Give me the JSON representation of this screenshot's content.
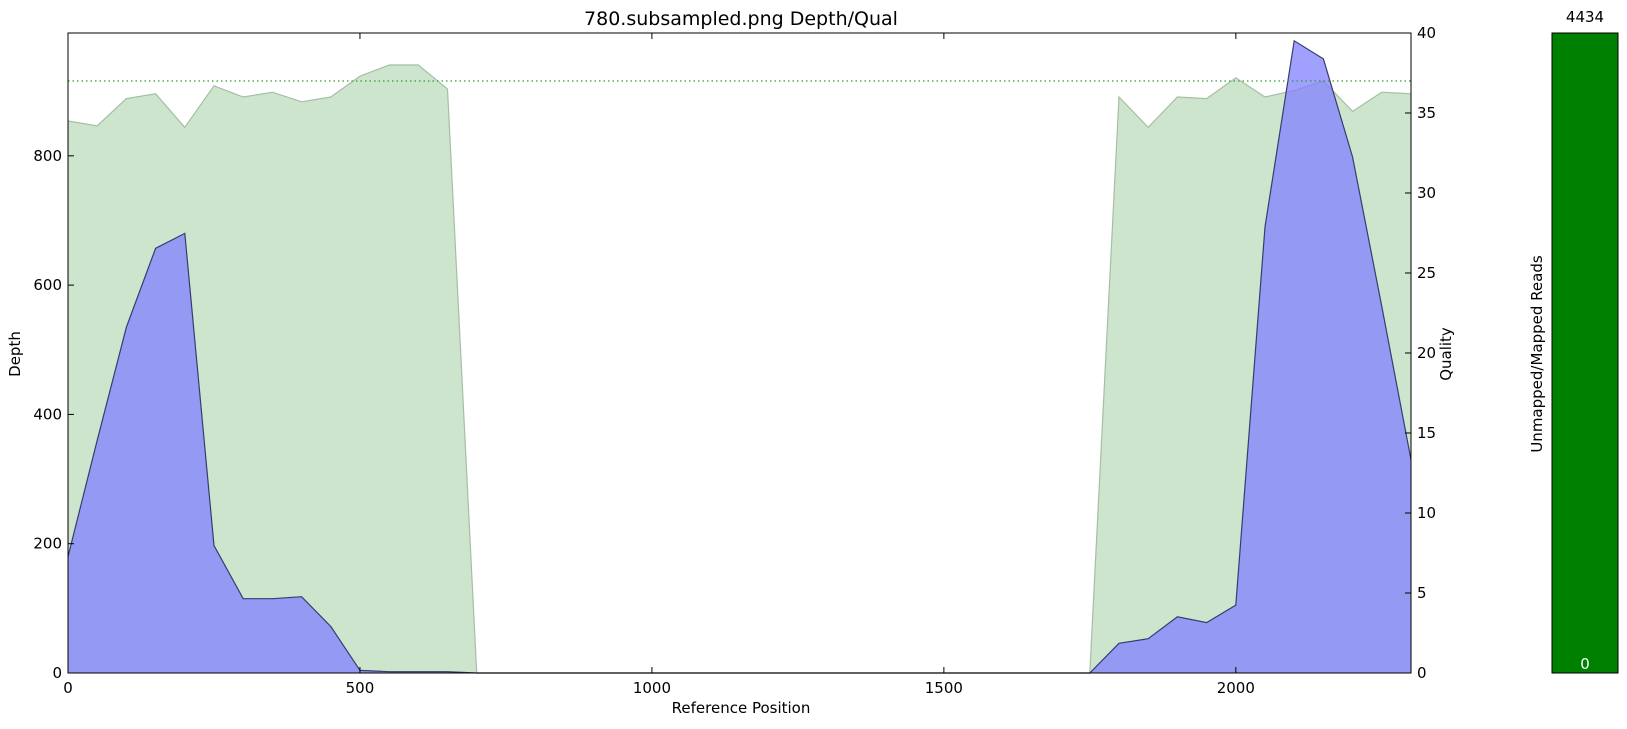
{
  "chart_data": {
    "type": "area",
    "title": "780.subsampled.png Depth/Qual",
    "xlabel": "Reference Position",
    "ylabel_left": "Depth",
    "ylabel_right": "Quality",
    "xlim": [
      0,
      2300
    ],
    "ylim_left": [
      0,
      990
    ],
    "ylim_right": [
      0,
      40
    ],
    "xticks": [
      0,
      500,
      1000,
      1500,
      2000
    ],
    "yticks_left": [
      0,
      200,
      400,
      600,
      800
    ],
    "yticks_right": [
      0,
      5,
      10,
      15,
      20,
      25,
      30,
      35,
      40
    ],
    "quality_threshold": 37,
    "colors": {
      "depth_fill": "#8080ff",
      "depth_line": "#3a3a6e",
      "quality_fill": "#cde5cd",
      "quality_line": "#a5bea5",
      "threshold_line": "#2e9a2e",
      "bar_fill": "#008000"
    },
    "x": [
      0,
      50,
      100,
      150,
      200,
      250,
      300,
      350,
      400,
      450,
      500,
      550,
      600,
      650,
      700,
      750,
      800,
      850,
      900,
      950,
      1000,
      1050,
      1100,
      1150,
      1200,
      1250,
      1300,
      1350,
      1400,
      1450,
      1500,
      1550,
      1600,
      1650,
      1700,
      1750,
      1800,
      1850,
      1900,
      1950,
      2000,
      2050,
      2100,
      2150,
      2200,
      2250,
      2300
    ],
    "series": [
      {
        "name": "Depth",
        "axis": "left",
        "values": [
          180,
          360,
          535,
          657,
          680,
          197,
          115,
          115,
          118,
          72,
          4,
          2,
          2,
          2,
          0,
          0,
          0,
          0,
          0,
          0,
          0,
          0,
          0,
          0,
          0,
          0,
          0,
          0,
          0,
          0,
          0,
          0,
          0,
          0,
          0,
          0,
          46,
          53,
          87,
          78,
          105,
          690,
          978,
          950,
          798,
          567,
          330
        ]
      },
      {
        "name": "Quality",
        "axis": "right",
        "values": [
          34.5,
          34.2,
          35.9,
          36.2,
          34.1,
          36.7,
          36.0,
          36.3,
          35.7,
          36.0,
          37.3,
          38.0,
          38.0,
          36.5,
          0,
          0,
          0,
          0,
          0,
          0,
          0,
          0,
          0,
          0,
          0,
          0,
          0,
          0,
          0,
          0,
          0,
          0,
          0,
          0,
          0,
          0,
          36.0,
          34.1,
          36.0,
          35.9,
          37.2,
          36.0,
          36.4,
          37.0,
          35.1,
          36.3,
          36.2
        ]
      }
    ],
    "reads_bar": {
      "ylabel": "Unmapped/Mapped Reads",
      "top_label": "4434",
      "bottom_label": "0",
      "mapped": 4434,
      "unmapped": 0
    }
  }
}
